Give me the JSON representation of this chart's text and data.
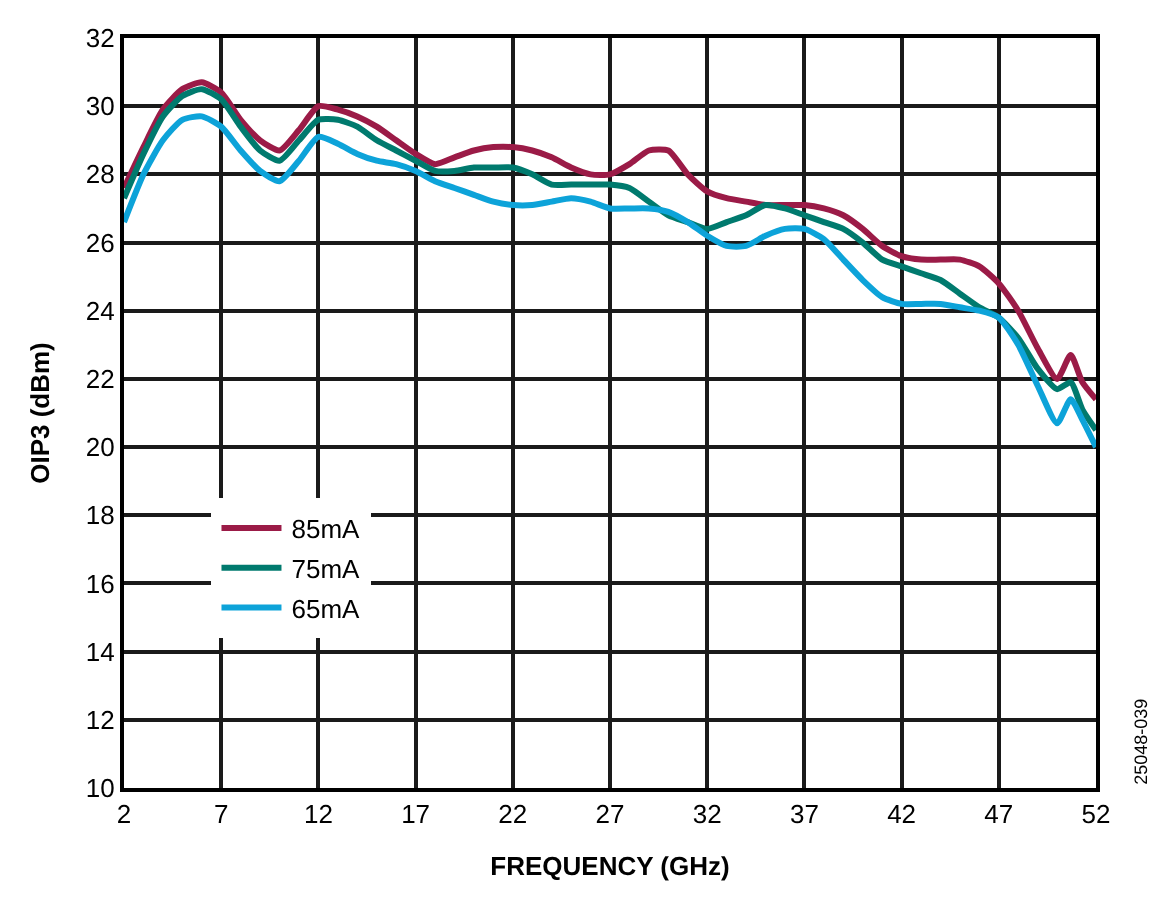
{
  "chart_data": {
    "type": "line",
    "xlabel": "FREQUENCY (GHz)",
    "ylabel": "OIP3 (dBm)",
    "x": [
      2,
      3,
      4,
      5,
      6,
      7,
      8,
      9,
      10,
      11,
      12,
      13,
      14,
      15,
      16,
      17,
      18,
      19,
      20,
      21,
      22,
      23,
      24,
      25,
      26,
      27,
      28,
      29,
      30,
      31,
      32,
      33,
      34,
      35,
      36,
      37,
      38,
      39,
      40,
      41,
      42,
      43,
      44,
      45,
      46,
      47,
      48,
      49,
      50,
      50.7,
      51.3,
      52
    ],
    "series": [
      {
        "name": "85mA",
        "color": "#9b1b47",
        "values": [
          27.6,
          28.8,
          29.9,
          30.5,
          30.7,
          30.4,
          29.6,
          29.0,
          28.7,
          29.3,
          30.0,
          29.9,
          29.7,
          29.4,
          29.0,
          28.6,
          28.3,
          28.5,
          28.7,
          28.8,
          28.8,
          28.7,
          28.5,
          28.2,
          28.0,
          28.0,
          28.3,
          28.7,
          28.7,
          28.0,
          27.5,
          27.3,
          27.2,
          27.1,
          27.1,
          27.1,
          27.0,
          26.8,
          26.4,
          25.9,
          25.6,
          25.5,
          25.5,
          25.5,
          25.3,
          24.8,
          24.0,
          22.9,
          22.0,
          22.7,
          21.9,
          21.4
        ]
      },
      {
        "name": "75mA",
        "color": "#007a6e",
        "values": [
          27.3,
          28.6,
          29.7,
          30.3,
          30.5,
          30.2,
          29.4,
          28.7,
          28.4,
          29.0,
          29.6,
          29.6,
          29.4,
          29.0,
          28.7,
          28.4,
          28.1,
          28.1,
          28.2,
          28.2,
          28.2,
          28.0,
          27.7,
          27.7,
          27.7,
          27.7,
          27.6,
          27.2,
          26.8,
          26.6,
          26.4,
          26.6,
          26.8,
          27.1,
          27.0,
          26.8,
          26.6,
          26.4,
          26.0,
          25.5,
          25.3,
          25.1,
          24.9,
          24.5,
          24.1,
          23.8,
          23.2,
          22.3,
          21.7,
          21.9,
          21.1,
          20.5
        ]
      },
      {
        "name": "65mA",
        "color": "#0da3d9",
        "values": [
          26.6,
          28.0,
          29.0,
          29.6,
          29.7,
          29.4,
          28.7,
          28.1,
          27.8,
          28.4,
          29.1,
          28.9,
          28.6,
          28.4,
          28.3,
          28.1,
          27.8,
          27.6,
          27.4,
          27.2,
          27.1,
          27.1,
          27.2,
          27.3,
          27.2,
          27.0,
          27.0,
          27.0,
          26.9,
          26.6,
          26.2,
          25.9,
          25.9,
          26.2,
          26.4,
          26.4,
          26.1,
          25.5,
          24.9,
          24.4,
          24.2,
          24.2,
          24.2,
          24.1,
          24.0,
          23.8,
          23.0,
          21.8,
          20.7,
          21.4,
          20.8,
          20.0
        ]
      }
    ],
    "xlim": [
      2,
      52
    ],
    "xticks": [
      2,
      7,
      12,
      17,
      22,
      27,
      32,
      37,
      42,
      47,
      52
    ],
    "ylim": [
      10,
      32
    ],
    "yticks": [
      10,
      12,
      14,
      16,
      18,
      20,
      22,
      24,
      26,
      28,
      30,
      32
    ],
    "grid": true,
    "legend": "bottom left",
    "marker": "none",
    "line_style": "solid",
    "annotations": [
      "25048-039"
    ]
  }
}
